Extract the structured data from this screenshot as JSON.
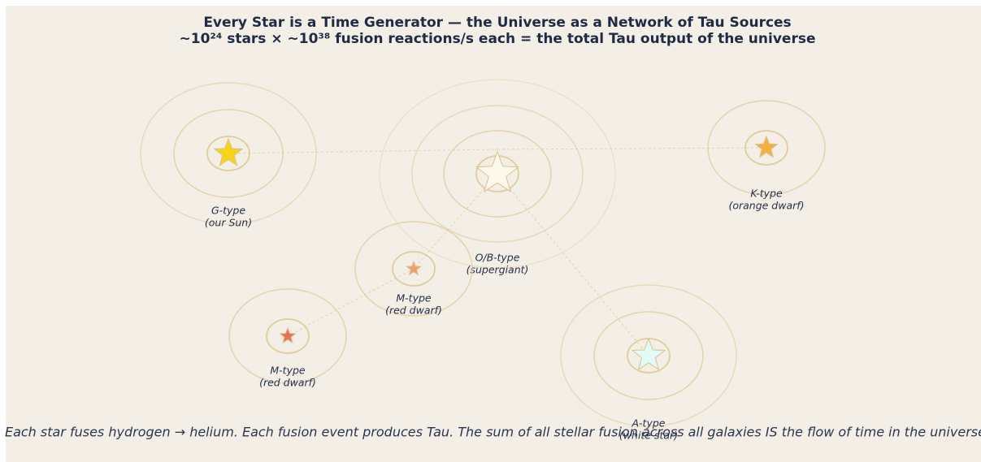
{
  "title": "Every Star is a Time Generator — the Universe as a Network of Tau Sources",
  "subtitle": "~10²⁴ stars × ~10³⁸ fusion reactions/s each = the total Tau output of the universe",
  "nodes": [
    {
      "type": "G-type",
      "description": "(our Sun)"
    },
    {
      "type": "O/B-type",
      "description": "(supergiant)"
    },
    {
      "type": "K-type",
      "description": "(orange dwarf)"
    },
    {
      "type": "M-type",
      "description": "(red dwarf)"
    },
    {
      "type": "M-type",
      "description": "(red dwarf)"
    },
    {
      "type": "A-type",
      "description": "(white star)"
    }
  ],
  "caption": "Each star fuses hydrogen → helium. Each fusion event produces Tau. The sum of all stellar fusion across all galaxies IS the flow of time in the universe."
}
